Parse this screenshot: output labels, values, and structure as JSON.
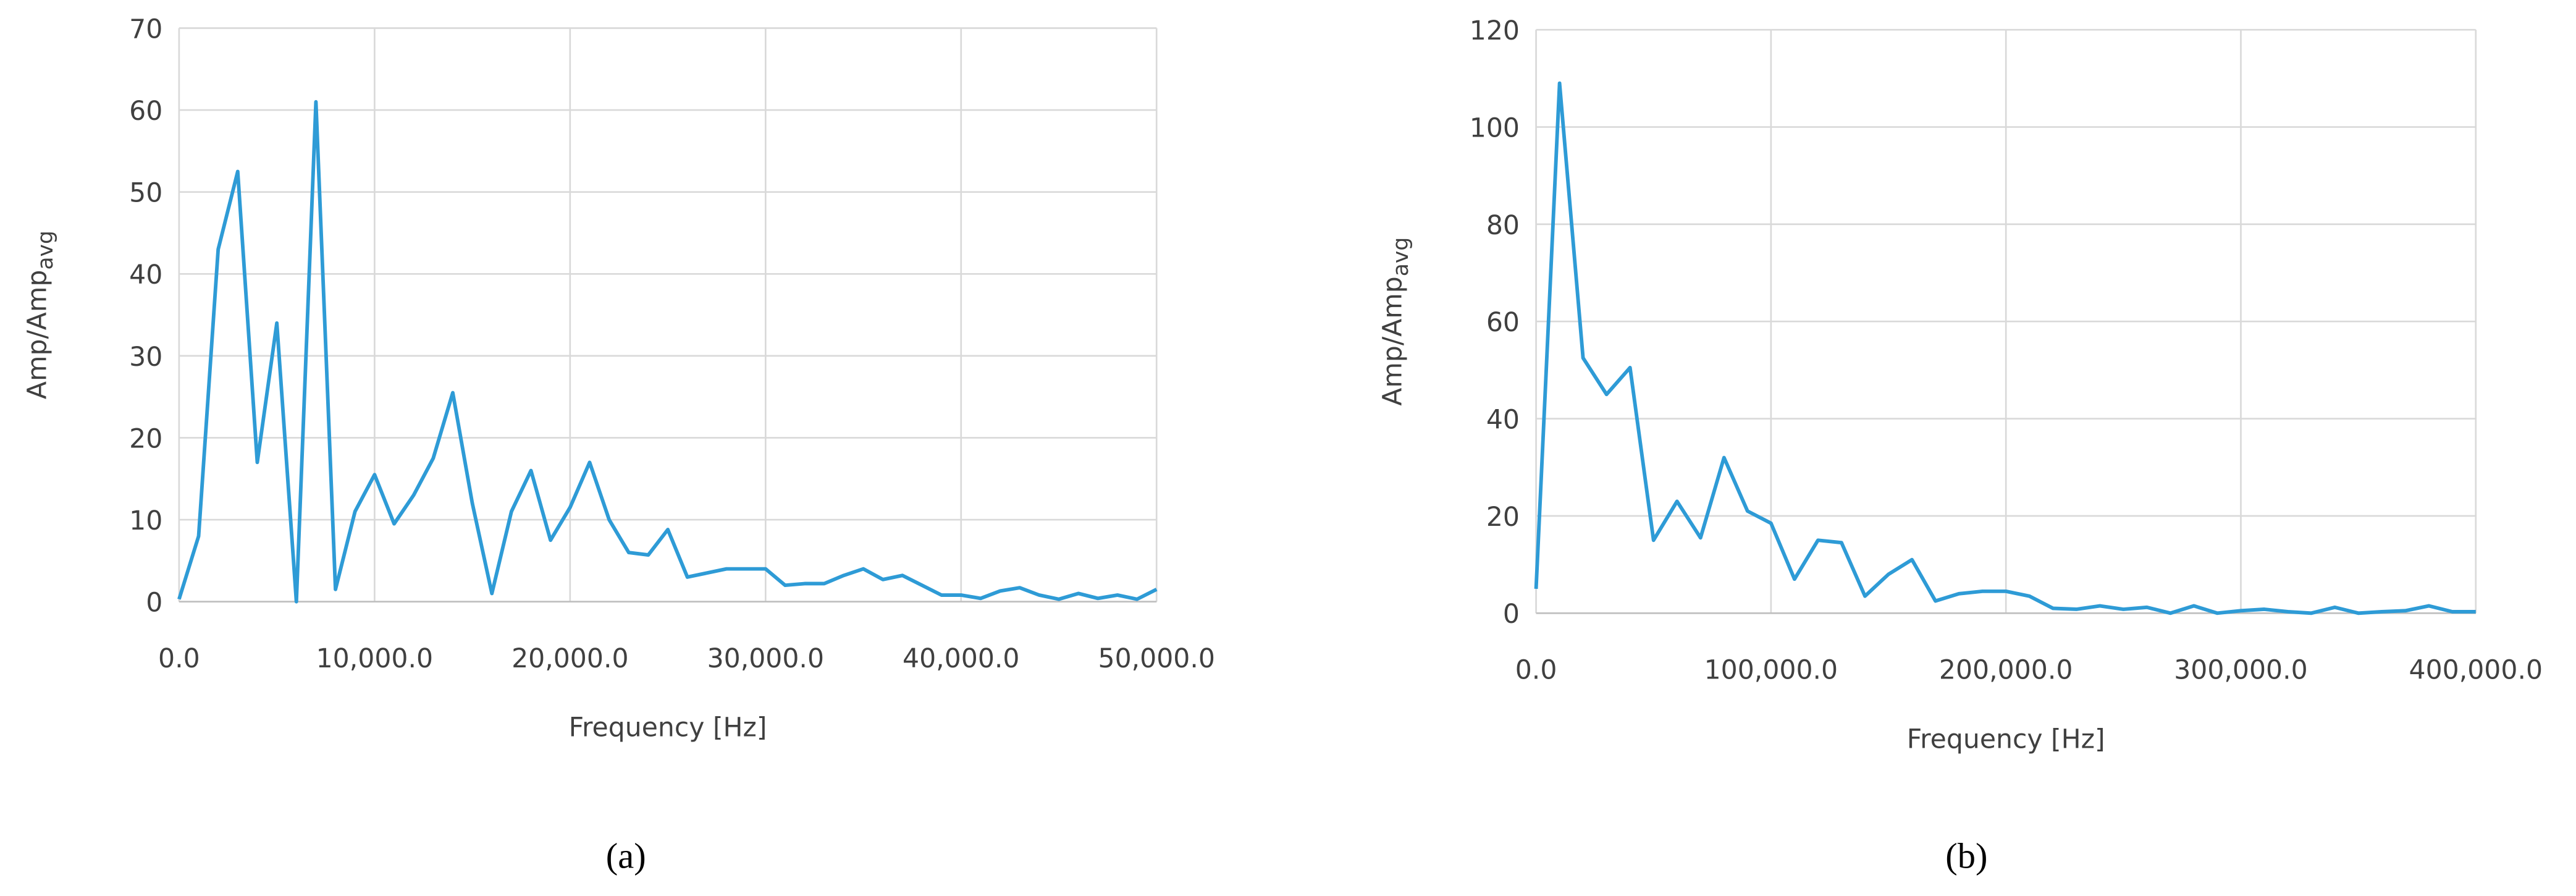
{
  "chart_data": [
    {
      "type": "line",
      "caption": "(a)",
      "xlabel": "Frequency [Hz]",
      "ylabel": "Amp/Amp",
      "ylabel_sub": "avg",
      "grid": true,
      "xlim": [
        0,
        50000
      ],
      "xticks": [
        {
          "value": 0,
          "label": "0.0"
        },
        {
          "value": 10000,
          "label": "10,000.0"
        },
        {
          "value": 20000,
          "label": "20,000.0"
        },
        {
          "value": 30000,
          "label": "30,000.0"
        },
        {
          "value": 40000,
          "label": "40,000.0"
        },
        {
          "value": 50000,
          "label": "50,000.0"
        }
      ],
      "ylim": [
        0,
        70
      ],
      "yticks": [
        0,
        10,
        20,
        30,
        40,
        50,
        60,
        70
      ],
      "x": [
        0,
        1000,
        2000,
        3000,
        4000,
        5000,
        6000,
        7000,
        8000,
        9000,
        10000,
        11000,
        12000,
        13000,
        14000,
        15000,
        16000,
        17000,
        18000,
        19000,
        20000,
        21000,
        22000,
        23000,
        24000,
        25000,
        26000,
        27000,
        28000,
        29000,
        30000,
        31000,
        32000,
        33000,
        34000,
        35000,
        36000,
        37000,
        38000,
        39000,
        40000,
        41000,
        42000,
        43000,
        44000,
        45000,
        46000,
        47000,
        48000,
        49000,
        50000
      ],
      "series": [
        {
          "color": "#2e9bd6",
          "values": [
            0.3,
            8,
            43,
            52.5,
            17,
            34,
            0,
            61,
            1.5,
            11,
            15.5,
            9.5,
            13,
            17.5,
            25.5,
            12,
            1,
            11,
            16,
            7.5,
            11.5,
            17,
            10,
            6,
            5.7,
            8.8,
            3,
            3.5,
            4,
            4,
            4,
            2,
            2.2,
            2.2,
            3.2,
            4,
            2.7,
            3.2,
            2,
            0.8,
            0.8,
            0.4,
            1.3,
            1.7,
            0.8,
            0.3,
            1,
            0.4,
            0.8,
            0.3,
            1.5
          ]
        }
      ]
    },
    {
      "type": "line",
      "caption": "(b)",
      "xlabel": "Frequency [Hz]",
      "ylabel": "Amp/Amp",
      "ylabel_sub": "avg",
      "grid": true,
      "xlim": [
        0,
        400000
      ],
      "xticks": [
        {
          "value": 0,
          "label": "0.0"
        },
        {
          "value": 100000,
          "label": "100,000.0"
        },
        {
          "value": 200000,
          "label": "200,000.0"
        },
        {
          "value": 300000,
          "label": "300,000.0"
        },
        {
          "value": 400000,
          "label": "400,000.0"
        }
      ],
      "ylim": [
        0,
        120
      ],
      "yticks": [
        0,
        20,
        40,
        60,
        80,
        100,
        120
      ],
      "x": [
        0,
        10000,
        20000,
        30000,
        40000,
        50000,
        60000,
        70000,
        80000,
        90000,
        100000,
        110000,
        120000,
        130000,
        140000,
        150000,
        160000,
        170000,
        180000,
        190000,
        200000,
        210000,
        220000,
        230000,
        240000,
        250000,
        260000,
        270000,
        280000,
        290000,
        300000,
        310000,
        320000,
        330000,
        340000,
        350000,
        360000,
        370000,
        380000,
        390000,
        400000
      ],
      "series": [
        {
          "color": "#2e9bd6",
          "values": [
            5,
            109,
            52.5,
            45,
            50.5,
            15,
            23,
            15.5,
            32,
            21,
            18.5,
            7,
            15,
            14.5,
            3.5,
            8,
            11,
            2.5,
            4,
            4.5,
            4.5,
            3.5,
            1,
            0.8,
            1.5,
            0.8,
            1.2,
            0,
            1.5,
            0,
            0.5,
            0.8,
            0.3,
            0,
            1.2,
            0,
            0.3,
            0.5,
            1.5,
            0.3,
            0.3
          ]
        }
      ]
    }
  ]
}
